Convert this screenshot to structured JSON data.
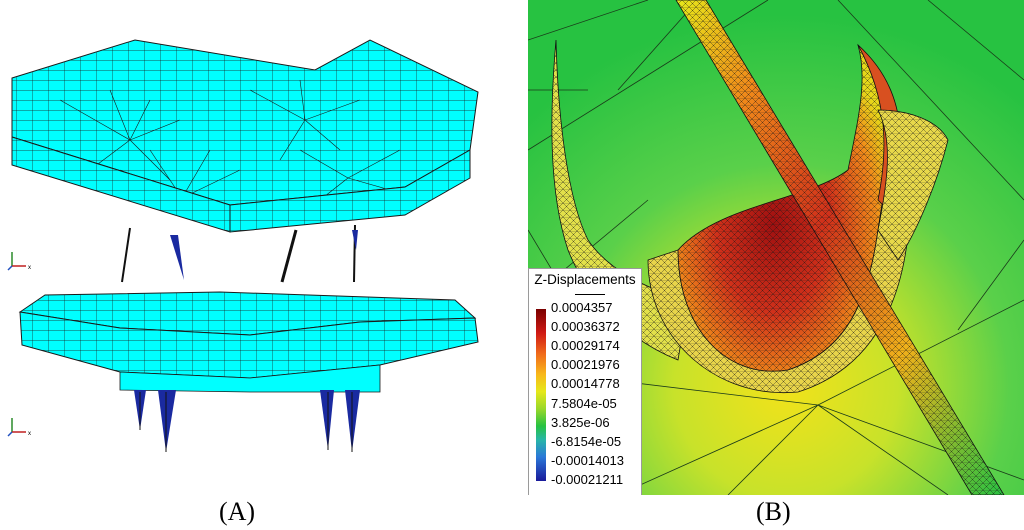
{
  "caption_a": "(A)",
  "caption_b": "(B)",
  "legend": {
    "title": "Z-Displacements",
    "ticks": [
      "0.0004357",
      "0.00036372",
      "0.00029174",
      "0.00021976",
      "0.00014778",
      "7.5804e-05",
      "3.825e-06",
      "-6.8154e-05",
      "-0.00014013",
      "-0.00021211"
    ]
  },
  "colors": {
    "mesh_cyan": "#00ffff",
    "mesh_line": "#1a1a1a",
    "field_green": "#34d648",
    "field_yellow": "#e6e81a",
    "field_red": "#c8281a"
  }
}
